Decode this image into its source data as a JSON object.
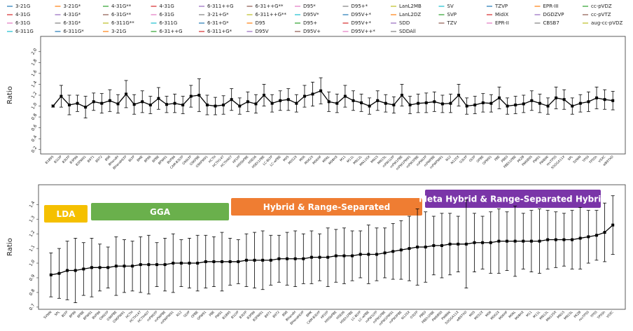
{
  "chart_data": [
    {
      "type": "line",
      "ylabel": "Ratio",
      "color": "#000000",
      "legend_entries": [
        {
          "name": "3-21G",
          "color": "#1f77b4"
        },
        {
          "name": "3-21G*",
          "color": "#ff7f0e"
        },
        {
          "name": "4-31G**",
          "color": "#2ca02c"
        },
        {
          "name": "4-31G",
          "color": "#d62728"
        },
        {
          "name": "6-311++G",
          "color": "#9467bd"
        },
        {
          "name": "6-31++G**",
          "color": "#8c564b"
        },
        {
          "name": "D95*",
          "color": "#e377c2"
        },
        {
          "name": "D95+*",
          "color": "#7f7f7f"
        },
        {
          "name": "LanL2MB",
          "color": "#bcbd22"
        },
        {
          "name": "SV",
          "color": "#17becf"
        },
        {
          "name": "TZVP",
          "color": "#1f77b4"
        },
        {
          "name": "EPR-III",
          "color": "#ff7f0e"
        },
        {
          "name": "cc-pVDZ",
          "color": "#2ca02c"
        },
        {
          "name": "4-31G",
          "color": "#d62728"
        },
        {
          "name": "4-31G*",
          "color": "#9467bd"
        },
        {
          "name": "6-31G**",
          "color": "#8c564b"
        },
        {
          "name": "6-31G",
          "color": "#e377c2"
        },
        {
          "name": "3-21+G*",
          "color": "#7f7f7f"
        },
        {
          "name": "6-311++G**",
          "color": "#bcbd22"
        },
        {
          "name": "D95V*",
          "color": "#17becf"
        },
        {
          "name": "D95V+*",
          "color": "#1f77b4"
        },
        {
          "name": "LanL2DZ",
          "color": "#ff7f0e"
        },
        {
          "name": "SVP",
          "color": "#2ca02c"
        },
        {
          "name": "MidiX",
          "color": "#d62728"
        },
        {
          "name": "DGDZVP",
          "color": "#9467bd"
        },
        {
          "name": "cc-pVTZ",
          "color": "#8c564b"
        },
        {
          "name": "6-31G",
          "color": "#e377c2"
        },
        {
          "name": "6-31G*",
          "color": "#7f7f7f"
        },
        {
          "name": "6-311G**",
          "color": "#bcbd22"
        },
        {
          "name": "6-311G",
          "color": "#17becf"
        },
        {
          "name": "6-31+G*",
          "color": "#1f77b4"
        },
        {
          "name": "D95",
          "color": "#ff7f0e"
        },
        {
          "name": "D95+",
          "color": "#2ca02c"
        },
        {
          "name": "D95V+*",
          "color": "#d62728"
        },
        {
          "name": "SDD",
          "color": "#9467bd"
        },
        {
          "name": "TZV",
          "color": "#8c564b"
        },
        {
          "name": "EPR-II",
          "color": "#e377c2"
        },
        {
          "name": "CBSB7",
          "color": "#7f7f7f"
        },
        {
          "name": "aug-cc-pVDZ",
          "color": "#bcbd22"
        },
        {
          "name": "6-311G",
          "color": "#17becf"
        },
        {
          "name": "6-311G*",
          "color": "#1f77b4"
        },
        {
          "name": "3-21G",
          "color": "#ff7f0e"
        },
        {
          "name": "6-31++G",
          "color": "#2ca02c"
        },
        {
          "name": "6-311+G*",
          "color": "#d62728"
        },
        {
          "name": "D95V",
          "color": "#9467bd"
        },
        {
          "name": "D95V+",
          "color": "#8c564b"
        },
        {
          "name": "D95V++*",
          "color": "#e377c2"
        },
        {
          "name": "SDDAll",
          "color": "#7f7f7f"
        }
      ],
      "ylim": [
        0.12,
        2.28
      ],
      "yticks": [
        0.2,
        0.4,
        0.6,
        0.8,
        {
          "value": 1.0,
          "label": "1.0"
        },
        1.2,
        1.4,
        1.6,
        1.8,
        {
          "value": 2.0,
          "label": "2.0"
        }
      ],
      "categories": [
        "B1B95",
        "B1LYP",
        "B3LYP",
        "B3P86",
        "B3PW91",
        "B971",
        "B972",
        "B98",
        "BHandH",
        "BHandHLYP",
        "BLYP",
        "BMK",
        "BP86",
        "BPBE",
        "BPW91",
        "BVP86",
        "CAM-B3LYP",
        "G96LYP",
        "G96PBE",
        "G96PW91",
        "HCTH",
        "HCTH147",
        "HCTH407",
        "HFLYP",
        "HISSbPBE",
        "HSE06",
        "HSEh1PBE",
        "LC-BLYP",
        "LC-wPBE",
        "M05",
        "M052X",
        "M06",
        "M062X",
        "M06HF",
        "M06L",
        "M08HX",
        "M11",
        "M11L",
        "MN12L",
        "MN12SX",
        "MN15",
        "MN15L",
        "mPW1LYP",
        "mPW1PBE",
        "mPW1PW91",
        "mPW3PBE",
        "mPWLYP",
        "mPWPBE",
        "mPWPW91",
        "N12",
        "N12SX",
        "O3LYP",
        "OLYP",
        "OPBE",
        "OPW91",
        "PBE",
        "PBE0",
        "PBEh1PBE",
        "PKZB",
        "PW6B95",
        "PW91",
        "PWB6K",
        "revTPSS",
        "SOGGA11X",
        "SPL",
        "SVWN",
        "TPSS",
        "TPSSh",
        "VSXC",
        "wB97XD"
      ],
      "values": [
        1.0,
        1.18,
        1.02,
        1.05,
        0.98,
        1.08,
        1.05,
        1.1,
        1.04,
        1.22,
        1.03,
        1.08,
        1.02,
        1.14,
        1.03,
        1.05,
        1.02,
        1.18,
        1.2,
        1.02,
        1.0,
        1.02,
        1.12,
        1.0,
        1.08,
        1.04,
        1.2,
        1.05,
        1.1,
        1.12,
        1.05,
        1.18,
        1.22,
        1.28,
        1.08,
        1.05,
        1.18,
        1.1,
        1.06,
        1.0,
        1.1,
        1.05,
        1.02,
        1.2,
        1.02,
        1.05,
        1.06,
        1.08,
        1.04,
        1.05,
        1.2,
        1.0,
        1.02,
        1.06,
        1.05,
        1.15,
        1.0,
        1.02,
        1.04,
        1.1,
        1.05,
        1.0,
        1.15,
        1.12,
        1.0,
        1.05,
        1.08,
        1.15,
        1.12,
        1.1
      ],
      "errors": [
        0.02,
        0.2,
        0.18,
        0.15,
        0.2,
        0.16,
        0.18,
        0.2,
        0.17,
        0.25,
        0.18,
        0.2,
        0.16,
        0.2,
        0.15,
        0.17,
        0.16,
        0.2,
        0.3,
        0.18,
        0.16,
        0.17,
        0.2,
        0.15,
        0.18,
        0.17,
        0.2,
        0.16,
        0.18,
        0.2,
        0.16,
        0.2,
        0.22,
        0.24,
        0.18,
        0.17,
        0.2,
        0.18,
        0.16,
        0.15,
        0.18,
        0.16,
        0.15,
        0.2,
        0.16,
        0.17,
        0.18,
        0.18,
        0.16,
        0.17,
        0.2,
        0.15,
        0.16,
        0.17,
        0.16,
        0.2,
        0.15,
        0.16,
        0.16,
        0.18,
        0.17,
        0.15,
        0.2,
        0.18,
        0.15,
        0.16,
        0.18,
        0.2,
        0.18,
        0.17
      ]
    },
    {
      "type": "line",
      "ylabel": "Ratio",
      "color": "#000000",
      "groups": [
        {
          "label": "LDA",
          "color": "#f5c000"
        },
        {
          "label": "GGA",
          "color": "#6ab04c"
        },
        {
          "label": "Hybrid & Range-Separated",
          "color": "#ef7d32"
        },
        {
          "label": "Meta Hybrid & Range-Separated Hybrid",
          "color": "#7a35a8"
        }
      ],
      "ylim": [
        0.685,
        1.535
      ],
      "yticks": [
        0.7,
        0.8,
        0.9,
        {
          "value": 1.0,
          "label": "1.0"
        },
        1.1,
        1.2,
        1.3,
        1.4
      ],
      "categories": [
        "SVWN",
        "SPL",
        "BLYP",
        "BP86",
        "BPBE",
        "BPW91",
        "BVP86",
        "G96LYP",
        "G96PBE",
        "G96PW91",
        "HCTH",
        "HCTH147",
        "HCTH407",
        "mPWLYP",
        "mPWPBE",
        "mPWPW91",
        "N12",
        "OLYP",
        "OPBE",
        "OPW91",
        "PBE",
        "PW91",
        "B1B95",
        "B1LYP",
        "B3LYP",
        "B3P86",
        "B3PW91",
        "B971",
        "B972",
        "B98",
        "BHandH",
        "BHandHLYP",
        "BMK",
        "CAM-B3LYP",
        "HFLYP",
        "HISSbPBE",
        "HSE06",
        "HSEh1PBE",
        "LC-BLYP",
        "LC-wPBE",
        "mPW1LYP",
        "mPW1PBE",
        "mPW1PW91",
        "mPW3PBE",
        "N12SX",
        "O3LYP",
        "PBE0",
        "PBEh1PBE",
        "PW6B95",
        "PWB6K",
        "SOGGA11X",
        "wB97XD",
        "M05",
        "M052X",
        "M06",
        "M062X",
        "M06HF",
        "M06L",
        "M08HX",
        "M11",
        "M11L",
        "MN12L",
        "MN12SX",
        "MN15",
        "MN15L",
        "PKZB",
        "revTPSS",
        "TPSS",
        "TPSSh",
        "VSXC"
      ],
      "values": [
        0.92,
        0.93,
        0.95,
        0.95,
        0.96,
        0.97,
        0.97,
        0.97,
        0.98,
        0.98,
        0.98,
        0.99,
        0.99,
        0.99,
        0.99,
        1.0,
        1.0,
        1.0,
        1.0,
        1.01,
        1.01,
        1.01,
        1.01,
        1.01,
        1.02,
        1.02,
        1.02,
        1.02,
        1.03,
        1.03,
        1.03,
        1.03,
        1.04,
        1.04,
        1.04,
        1.05,
        1.05,
        1.05,
        1.06,
        1.06,
        1.06,
        1.07,
        1.08,
        1.09,
        1.1,
        1.11,
        1.11,
        1.12,
        1.12,
        1.13,
        1.13,
        1.13,
        1.14,
        1.14,
        1.14,
        1.15,
        1.15,
        1.15,
        1.15,
        1.15,
        1.15,
        1.16,
        1.16,
        1.16,
        1.16,
        1.17,
        1.18,
        1.19,
        1.21,
        1.26
      ],
      "errors": [
        0.15,
        0.17,
        0.2,
        0.22,
        0.18,
        0.2,
        0.16,
        0.14,
        0.2,
        0.18,
        0.17,
        0.19,
        0.2,
        0.15,
        0.18,
        0.2,
        0.16,
        0.17,
        0.19,
        0.18,
        0.17,
        0.2,
        0.16,
        0.15,
        0.18,
        0.19,
        0.2,
        0.17,
        0.16,
        0.18,
        0.19,
        0.17,
        0.18,
        0.16,
        0.2,
        0.18,
        0.19,
        0.17,
        0.16,
        0.2,
        0.18,
        0.17,
        0.19,
        0.2,
        0.22,
        0.26,
        0.24,
        0.2,
        0.22,
        0.21,
        0.19,
        0.3,
        0.2,
        0.18,
        0.21,
        0.22,
        0.2,
        0.24,
        0.19,
        0.21,
        0.22,
        0.2,
        0.19,
        0.18,
        0.2,
        0.21,
        0.18,
        0.17,
        0.2,
        0.2
      ]
    }
  ]
}
